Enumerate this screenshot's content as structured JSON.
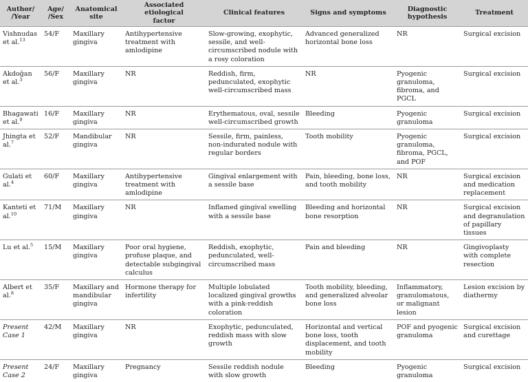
{
  "headers": [
    "Author/ /Year",
    "Age/ /Sex",
    "Anatomical site",
    "Associated etiological factor",
    "Clinical features",
    "Signs and symptoms",
    "Diagnostic hypothesis",
    "Treatment"
  ],
  "header_lines": [
    [
      "Author/",
      "/Year"
    ],
    [
      "Age/",
      "/Sex"
    ],
    [
      "Anatomical",
      "site"
    ],
    [
      "Associated etiological",
      "factor"
    ],
    [
      "Clinical features"
    ],
    [
      "Signs and symptoms"
    ],
    [
      "Diagnostic",
      "hypothesis"
    ],
    [
      "Treatment"
    ]
  ],
  "rows": [
    {
      "author": "Vishnudas et al.",
      "ref": "13",
      "age_sex": "54/F",
      "site": "Maxillary gingiva",
      "etiology": "Antihypertensive treatment with amlodipine",
      "clinical": "Slow-growing, exophytic, sessile, and well-circumscribed nodule with a rosy coloration",
      "signs": "Advanced generalized horizontal bone loss",
      "diagnosis": "NR",
      "treatment": "Surgical excision"
    },
    {
      "author": "Akdoğan et al.",
      "ref": "3",
      "age_sex": "56/F",
      "site": "Maxillary gingiva",
      "etiology": "NR",
      "clinical": "Reddish, firm, pedunculated, exophytic well-circumscribed mass",
      "signs": "NR",
      "diagnosis": "Pyogenic granuloma, fibroma, and PGCL",
      "treatment": "Surgical excision"
    },
    {
      "author": "Bhagawati et al.",
      "ref": "9",
      "age_sex": "16/F",
      "site": "Maxillary gingiva",
      "etiology": "NR",
      "clinical": "Erythematous, oval, sessile well-circumscribed growth",
      "signs": "Bleeding",
      "diagnosis": "Pyogenic granuloma",
      "treatment": "Surgical excision"
    },
    {
      "author": "Jhingta et al.",
      "ref": "7",
      "age_sex": "52/F",
      "site": "Mandibular gingiva",
      "etiology": "NR",
      "clinical": "Sessile, firm, painless, non-indurated nodule with regular borders",
      "signs": "Tooth mobility",
      "diagnosis": "Pyogenic granuloma, fibroma, PGCL, and POF",
      "treatment": "Surgical excision"
    },
    {
      "author": "Gulati et al.",
      "ref": "4",
      "age_sex": "60/F",
      "site": "Maxillary gingiva",
      "etiology": "Antihypertensive treatment with amlodipine",
      "clinical": "Gingival enlargement with a sessile base",
      "signs": "Pain, bleeding, bone loss, and tooth mobility",
      "diagnosis": "NR",
      "treatment": "Surgical excision and medication replacement"
    },
    {
      "author": "Kanteti et al.",
      "ref": "10",
      "age_sex": "71/M",
      "site": "Maxillary gingiva",
      "etiology": "NR",
      "clinical": "Inflamed gingival swelling with a sessile base",
      "signs": "Bleeding and horizontal bone resorption",
      "diagnosis": "NR",
      "treatment": "Surgical excision and degranulation of papillary tissues"
    },
    {
      "author": "Lu et al.",
      "ref": "5",
      "age_sex": "15/M",
      "site": "Maxillary gingiva",
      "etiology": "Poor oral hygiene, profuse plaque, and detectable subgingival calculus",
      "clinical": "Reddish, exophytic, pedunculated, well-circumscribed mass",
      "signs": "Pain and bleeding",
      "diagnosis": "NR",
      "treatment": "Gingivoplasty with complete resection"
    },
    {
      "author": "Albert et al.",
      "ref": "8",
      "age_sex": "35/F",
      "site": "Maxillary and mandibular gingiva",
      "etiology": "Hormone therapy for infertility",
      "clinical": "Multiple lobulated localized gingival growths with a pink-reddish coloration",
      "signs": "Tooth mobility, bleeding, and generalized alveolar bone loss",
      "diagnosis": "Inflammatory, granulomatous, or malignant lesion",
      "treatment": "Lesion excision by diathermy"
    },
    {
      "author": "Present Case 1",
      "ref": "",
      "age_sex": "42/M",
      "site": "Maxillary gingiva",
      "etiology": "NR",
      "clinical": "Exophytic, pedunculated, reddish mass with slow growth",
      "signs": "Horizontal and vertical bone loss, tooth displacement, and tooth mobility",
      "diagnosis": "POF and pyogenic granuloma",
      "treatment": "Surgical excision and curettage"
    },
    {
      "author": "Present Case 2",
      "ref": "",
      "age_sex": "24/F",
      "site": "Maxillary gingiva",
      "etiology": "Pregnancy",
      "clinical": "Sessile reddish nodule with slow growth",
      "signs": "Bleeding",
      "diagnosis": "Pyogenic granuloma",
      "treatment": "Surgical excision"
    }
  ]
}
